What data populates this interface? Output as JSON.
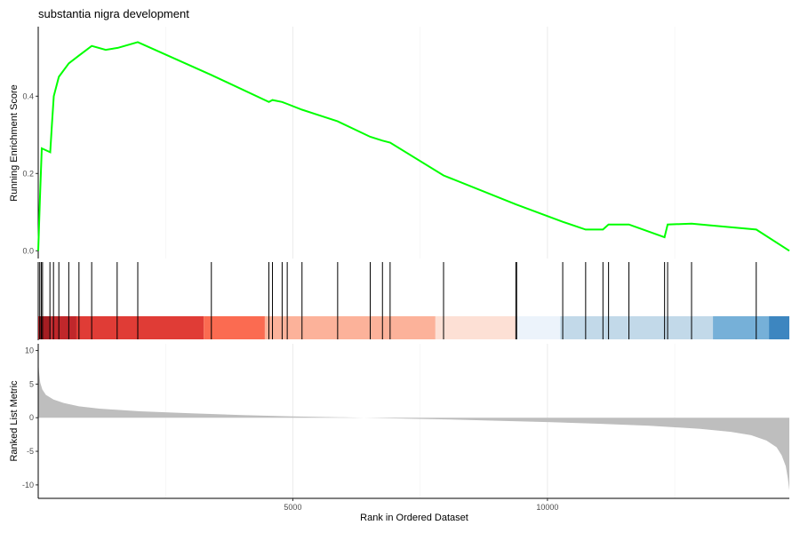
{
  "chart_data": {
    "type": "line",
    "title": "substantia nigra development",
    "xlabel": "Rank in Ordered Dataset",
    "x_ticks": [
      5000,
      10000
    ],
    "x_tick_labels": [
      "5000",
      "10000"
    ],
    "xlim": [
      0,
      14750
    ],
    "grid": "vertical",
    "legend": "none",
    "panels": {
      "enrichment": {
        "ylabel": "Running Enrichment Score",
        "ylim": [
          -0.02,
          0.58
        ],
        "y_ticks": [
          0.0,
          0.2,
          0.4
        ],
        "y_tick_labels": [
          "0.0",
          "0.2",
          "0.4"
        ],
        "color": "#00ff00",
        "x": [
          0,
          35,
          70,
          236,
          270,
          305,
          405,
          600,
          800,
          1050,
          1325,
          1560,
          1955,
          3400,
          4530,
          4600,
          4790,
          4890,
          5180,
          5880,
          6520,
          6760,
          6910,
          7960,
          9380,
          10300,
          10750,
          11090,
          11200,
          11600,
          12300,
          12360,
          12830,
          14100,
          14750
        ],
        "y": [
          0.0,
          0.14,
          0.265,
          0.255,
          0.33,
          0.4,
          0.45,
          0.485,
          0.505,
          0.53,
          0.52,
          0.525,
          0.54,
          0.455,
          0.385,
          0.39,
          0.385,
          0.38,
          0.365,
          0.335,
          0.295,
          0.285,
          0.28,
          0.195,
          0.12,
          0.075,
          0.055,
          0.055,
          0.068,
          0.068,
          0.035,
          0.068,
          0.07,
          0.055,
          0.0
        ]
      },
      "hits": {
        "positions": [
          30,
          60,
          85,
          230,
          300,
          405,
          600,
          800,
          1050,
          1550,
          1955,
          3400,
          4530,
          4600,
          4790,
          4890,
          5180,
          5880,
          6520,
          6760,
          6910,
          7960,
          9380,
          9395,
          10300,
          10750,
          11090,
          11200,
          11600,
          12300,
          12360,
          12830,
          14100
        ]
      },
      "color_band": {
        "segments": [
          {
            "start": 0,
            "end": 250,
            "color": "#a51d22"
          },
          {
            "start": 250,
            "end": 750,
            "color": "#c0272b"
          },
          {
            "start": 750,
            "end": 3250,
            "color": "#e03c36"
          },
          {
            "start": 3250,
            "end": 4450,
            "color": "#fb6b51"
          },
          {
            "start": 4450,
            "end": 7800,
            "color": "#fcb29a"
          },
          {
            "start": 7800,
            "end": 9400,
            "color": "#fde0d5"
          },
          {
            "start": 9400,
            "end": 10250,
            "color": "#ecf3fb"
          },
          {
            "start": 10250,
            "end": 13250,
            "color": "#c2d9e9"
          },
          {
            "start": 13250,
            "end": 14350,
            "color": "#76b0d8"
          },
          {
            "start": 14350,
            "end": 14750,
            "color": "#3d86c0"
          }
        ]
      },
      "ranked_metric": {
        "ylabel": "Ranked List Metric",
        "ylim": [
          -12,
          11
        ],
        "y_ticks": [
          10,
          5,
          0,
          -5,
          -10
        ],
        "y_tick_labels": [
          "10",
          "5",
          "0",
          "-5",
          "-10"
        ],
        "fill": "#bebebe",
        "x": [
          0,
          15,
          40,
          80,
          150,
          300,
          500,
          800,
          1200,
          2000,
          3000,
          4000,
          5000,
          6000,
          7000,
          8000,
          9000,
          10000,
          11000,
          12000,
          13000,
          13600,
          14000,
          14300,
          14500,
          14600,
          14680,
          14720,
          14750
        ],
        "y": [
          8.5,
          6.8,
          5.2,
          4.2,
          3.4,
          2.7,
          2.2,
          1.7,
          1.35,
          0.95,
          0.65,
          0.4,
          0.2,
          0.05,
          -0.1,
          -0.25,
          -0.45,
          -0.65,
          -0.9,
          -1.2,
          -1.65,
          -2.1,
          -2.6,
          -3.4,
          -4.4,
          -5.6,
          -7.2,
          -9.0,
          -10.8
        ]
      }
    }
  }
}
